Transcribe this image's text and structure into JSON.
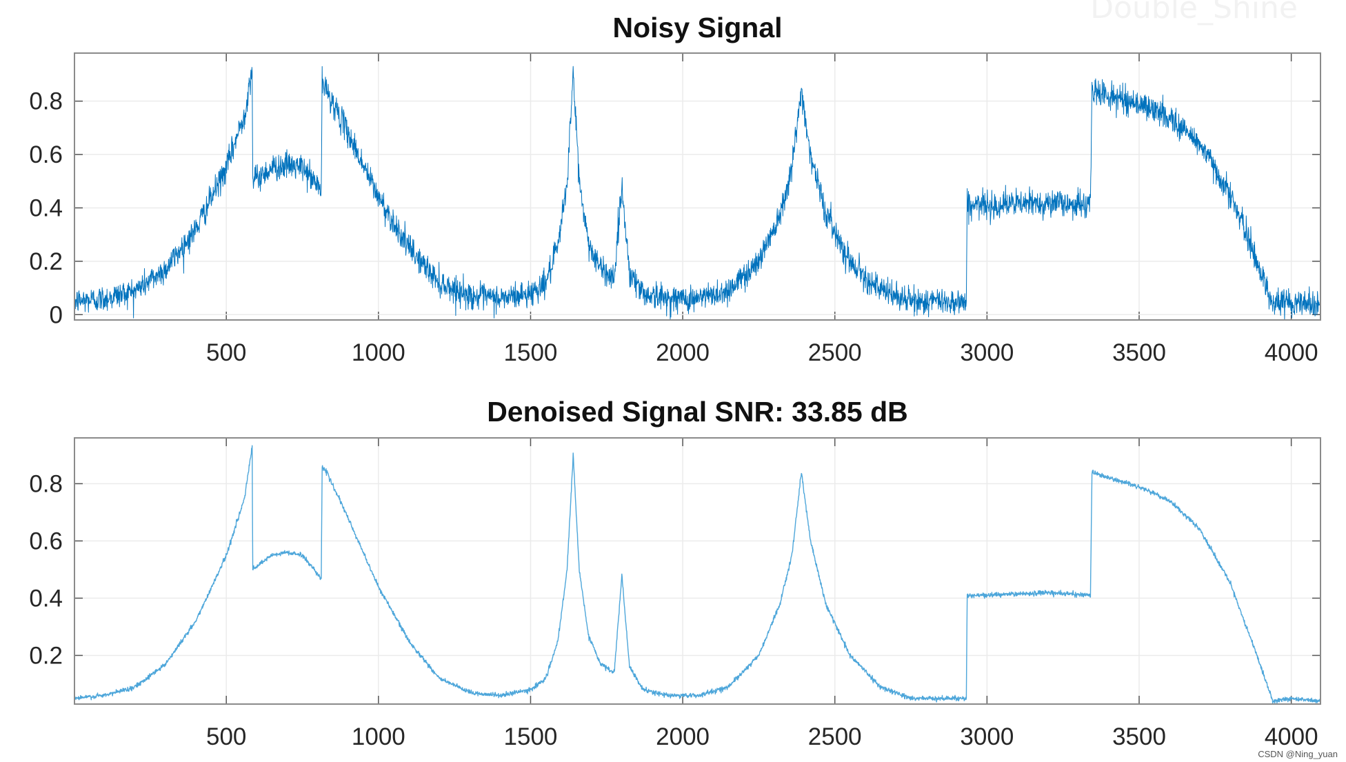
{
  "watermark": "Double_Shine",
  "credit": "CSDN @Ning_yuan",
  "line_color": "#0072BD",
  "denoised_line_color": "#4DA6DA",
  "chart_data": [
    {
      "type": "line",
      "title": "Noisy Signal",
      "xlabel": "",
      "ylabel": "",
      "xlim": [
        1,
        4096
      ],
      "ylim": [
        -0.02,
        0.98
      ],
      "xticks": [
        500,
        1000,
        1500,
        2000,
        2500,
        3000,
        3500,
        4000
      ],
      "yticks": [
        0,
        0.2,
        0.4,
        0.6,
        0.8
      ],
      "ytick_labels": [
        "0",
        "0.2",
        "0.4",
        "0.6",
        "0.8"
      ],
      "grid": true,
      "noise_std": 0.025,
      "clean_points": [
        [
          1,
          0.05
        ],
        [
          100,
          0.06
        ],
        [
          200,
          0.09
        ],
        [
          300,
          0.17
        ],
        [
          400,
          0.32
        ],
        [
          500,
          0.55
        ],
        [
          560,
          0.75
        ],
        [
          585,
          0.93
        ],
        [
          587,
          0.5
        ],
        [
          650,
          0.55
        ],
        [
          700,
          0.56
        ],
        [
          750,
          0.55
        ],
        [
          812,
          0.47
        ],
        [
          815,
          0.86
        ],
        [
          830,
          0.84
        ],
        [
          900,
          0.68
        ],
        [
          1000,
          0.44
        ],
        [
          1100,
          0.25
        ],
        [
          1200,
          0.12
        ],
        [
          1300,
          0.07
        ],
        [
          1400,
          0.06
        ],
        [
          1500,
          0.08
        ],
        [
          1550,
          0.12
        ],
        [
          1590,
          0.25
        ],
        [
          1620,
          0.5
        ],
        [
          1640,
          0.9
        ],
        [
          1660,
          0.5
        ],
        [
          1690,
          0.27
        ],
        [
          1730,
          0.17
        ],
        [
          1775,
          0.14
        ],
        [
          1800,
          0.48
        ],
        [
          1825,
          0.16
        ],
        [
          1870,
          0.08
        ],
        [
          1950,
          0.06
        ],
        [
          2050,
          0.06
        ],
        [
          2150,
          0.09
        ],
        [
          2250,
          0.2
        ],
        [
          2320,
          0.38
        ],
        [
          2360,
          0.56
        ],
        [
          2390,
          0.84
        ],
        [
          2420,
          0.6
        ],
        [
          2470,
          0.38
        ],
        [
          2550,
          0.2
        ],
        [
          2650,
          0.09
        ],
        [
          2750,
          0.05
        ],
        [
          2932,
          0.05
        ],
        [
          2935,
          0.41
        ],
        [
          3000,
          0.41
        ],
        [
          3200,
          0.42
        ],
        [
          3340,
          0.41
        ],
        [
          3345,
          0.84
        ],
        [
          3400,
          0.82
        ],
        [
          3500,
          0.79
        ],
        [
          3600,
          0.74
        ],
        [
          3700,
          0.64
        ],
        [
          3800,
          0.45
        ],
        [
          3870,
          0.25
        ],
        [
          3940,
          0.04
        ],
        [
          4000,
          0.05
        ],
        [
          4096,
          0.04
        ]
      ]
    },
    {
      "type": "line",
      "title": "Denoised Signal SNR:  33.85 dB",
      "xlabel": "",
      "ylabel": "",
      "xlim": [
        1,
        4096
      ],
      "ylim": [
        0.03,
        0.96
      ],
      "xticks": [
        500,
        1000,
        1500,
        2000,
        2500,
        3000,
        3500,
        4000
      ],
      "yticks": [
        0.2,
        0.4,
        0.6,
        0.8
      ],
      "ytick_labels": [
        "0.2",
        "0.4",
        "0.6",
        "0.8"
      ],
      "grid": true,
      "noise_std": 0.004
    }
  ]
}
